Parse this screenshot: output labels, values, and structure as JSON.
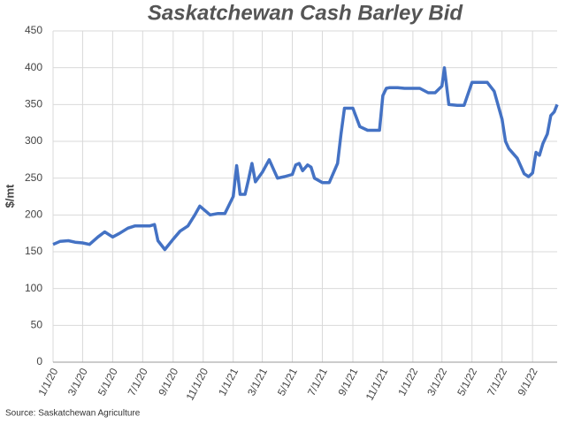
{
  "chart_data": {
    "type": "line",
    "title": "Saskatchewan Cash Barley Bid",
    "y_label": "$/mt",
    "source": "Source: Saskatchewan Agriculture",
    "x": [
      "1/1/20",
      "1/15/20",
      "2/1/20",
      "2/15/20",
      "3/1/20",
      "3/15/20",
      "4/1/20",
      "4/15/20",
      "5/1/20",
      "5/15/20",
      "6/1/20",
      "6/15/20",
      "7/1/20",
      "7/15/20",
      "7/25/20",
      "8/1/20",
      "8/15/20",
      "9/1/20",
      "9/15/20",
      "10/1/20",
      "10/15/20",
      "10/25/20",
      "11/15/20",
      "12/1/20",
      "12/15/20",
      "1/1/21",
      "1/8/21",
      "1/15/21",
      "1/25/21",
      "2/1/21",
      "2/8/21",
      "2/15/21",
      "3/1/21",
      "3/15/21",
      "4/1/21",
      "4/15/21",
      "5/1/21",
      "5/8/21",
      "5/15/21",
      "5/22/21",
      "6/1/21",
      "6/8/21",
      "6/15/21",
      "7/1/21",
      "7/15/21",
      "8/1/21",
      "8/8/21",
      "8/15/21",
      "9/1/21",
      "9/15/21",
      "10/1/21",
      "10/15/21",
      "10/25/21",
      "11/1/21",
      "11/8/21",
      "11/15/21",
      "12/1/21",
      "12/15/21",
      "1/1/22",
      "1/15/22",
      "2/1/22",
      "2/15/22",
      "3/1/22",
      "3/6/22",
      "3/15/22",
      "4/1/22",
      "4/15/22",
      "5/1/22",
      "5/15/22",
      "6/1/22",
      "6/15/22",
      "7/1/22",
      "7/8/22",
      "7/15/22",
      "8/1/22",
      "8/15/22",
      "8/24/22",
      "9/1/22",
      "9/8/22",
      "9/15/22",
      "9/22/22",
      "10/1/22",
      "10/8/22",
      "10/15/22",
      "10/21/22"
    ],
    "series": [
      {
        "name": "Saskatchewan Cash Barley Bid",
        "color": "#4472c4",
        "values": [
          160,
          164,
          165,
          163,
          162,
          160,
          170,
          177,
          170,
          175,
          182,
          185,
          185,
          185,
          187,
          165,
          153,
          167,
          178,
          185,
          200,
          212,
          200,
          202,
          202,
          225,
          267,
          228,
          228,
          248,
          270,
          245,
          258,
          275,
          250,
          252,
          255,
          268,
          270,
          260,
          268,
          265,
          250,
          244,
          244,
          270,
          310,
          345,
          345,
          320,
          315,
          315,
          315,
          362,
          372,
          373,
          373,
          372,
          372,
          372,
          366,
          366,
          375,
          400,
          350,
          349,
          349,
          380,
          380,
          380,
          368,
          330,
          300,
          290,
          277,
          256,
          252,
          257,
          285,
          281,
          297,
          310,
          335,
          340,
          350
        ]
      }
    ],
    "xlim": [
      "1/1/20",
      "10/21/22"
    ],
    "xticks": [
      "1/1/20",
      "3/1/20",
      "5/1/20",
      "7/1/20",
      "9/1/20",
      "11/1/20",
      "1/1/21",
      "3/1/21",
      "5/1/21",
      "7/1/21",
      "9/1/21",
      "11/1/21",
      "1/1/22",
      "3/1/22",
      "5/1/22",
      "7/1/22",
      "9/1/22"
    ],
    "ylim": [
      0,
      450
    ],
    "yticks": [
      0,
      50,
      100,
      150,
      200,
      250,
      300,
      350,
      400,
      450
    ],
    "grid": true
  }
}
